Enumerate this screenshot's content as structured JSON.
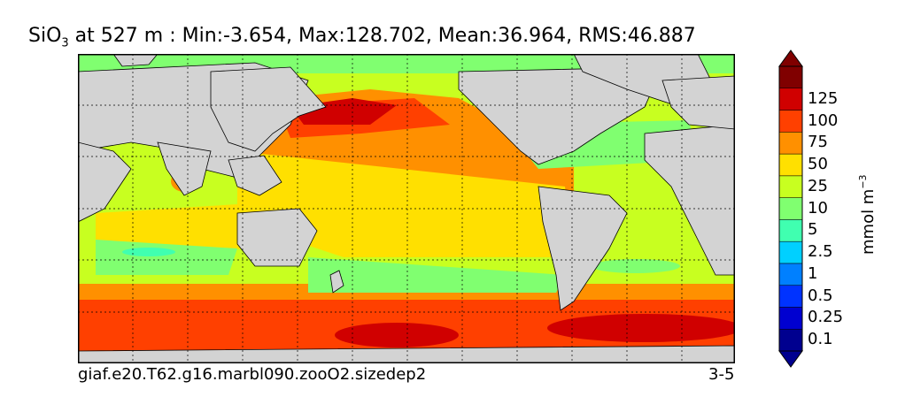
{
  "title": {
    "species": "SiO",
    "subscript": "3",
    "rest": " at 527 m : Min:-3.654, Max:128.702, Mean:36.964, RMS:46.887"
  },
  "colorbar": {
    "unit_label": "mmol m",
    "unit_exponent": "−3",
    "levels": [
      "0.1",
      "0.25",
      "0.5",
      "1",
      "2.5",
      "5",
      "10",
      "25",
      "50",
      "75",
      "100",
      "125"
    ],
    "colors": [
      "#00008f",
      "#0000d0",
      "#0033ff",
      "#0080ff",
      "#00d0ff",
      "#40ffb0",
      "#80ff70",
      "#c8ff20",
      "#ffe000",
      "#ff9000",
      "#ff4000",
      "#d00000",
      "#800000"
    ]
  },
  "footer": {
    "case_name": "giaf.e20.T62.g16.marbl090.zooO2.sizedep2",
    "years": "3-5"
  },
  "map": {
    "land_color": "#d3d3d3",
    "grid": true
  }
}
